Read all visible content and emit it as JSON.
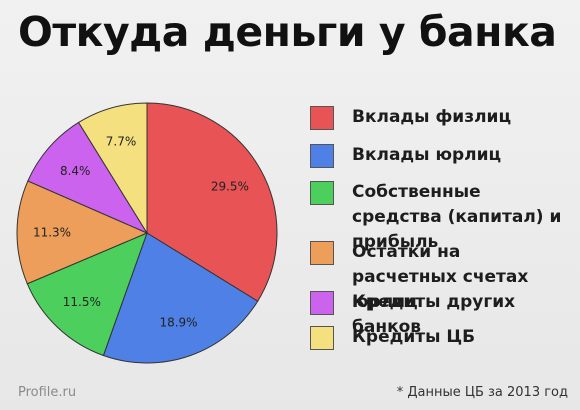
{
  "title": "Откуда деньги у банка",
  "source": "Profile.ru",
  "footnote": "* Данные ЦБ за 2013 год",
  "chart_data": {
    "type": "pie",
    "title": "Откуда деньги у банка",
    "start_angle_deg": 0,
    "direction": "clockwise",
    "legend_position": "right",
    "slices": [
      {
        "label": "Вклады физлиц",
        "value": 29.5,
        "value_label": "29.5%",
        "color": "#e85355"
      },
      {
        "label": "Вклады юрлиц",
        "value": 18.9,
        "value_label": "18.9%",
        "color": "#4f80e6"
      },
      {
        "label": "Собственные средства (капитал) и прибыль",
        "value": 11.5,
        "value_label": "11.5%",
        "color": "#4ccf5d"
      },
      {
        "label": "Остатки на расчетных счетах юрлиц",
        "value": 11.3,
        "value_label": "11.3%",
        "color": "#ed9e5a"
      },
      {
        "label": "Кредиты других банков",
        "value": 8.4,
        "value_label": "8.4%",
        "color": "#cc63ee"
      },
      {
        "label": "Кредиты ЦБ",
        "value": 7.7,
        "value_label": "7.7%",
        "color": "#f4e07f"
      }
    ]
  }
}
